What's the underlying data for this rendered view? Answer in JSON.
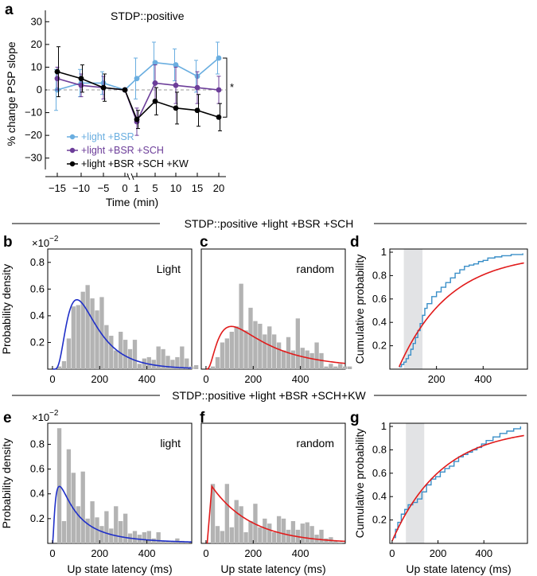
{
  "colors": {
    "light_bsr": "#6aaee0",
    "light_bsr_sch": "#6c3d99",
    "light_bsr_sch_kw": "#000000",
    "fit_blue": "#1f2fc8",
    "fit_red": "#e11b1b",
    "ecdf_blue": "#3a8fc8",
    "bar_gray": "#b3b3b3",
    "shade_gray": "#e2e3e5"
  },
  "sections": {
    "top_title": "STDP::positive +light +BSR +SCH",
    "bottom_title": "STDP::positive +light +BSR +SCH+KW"
  },
  "panel_a": {
    "letter": "a",
    "title": "STDP::positive",
    "ylabel": "% change PSP slope",
    "xlabel": "Time (min)",
    "significance": "*",
    "legend": [
      "+light +BSR",
      "+light +BSR +SCH",
      "+light +BSR +SCH +KW"
    ]
  },
  "chart_data": [
    {
      "id": "a",
      "type": "line",
      "title": "STDP::positive",
      "xlabel": "Time (min)",
      "ylabel": "% change PSP slope",
      "x_pre": [
        -15,
        -10,
        -5,
        0
      ],
      "x_post": [
        1,
        5,
        10,
        15,
        20
      ],
      "xticks": [
        -15,
        -10,
        -5,
        0,
        1,
        5,
        10,
        15,
        20
      ],
      "yticks": [
        -30,
        -20,
        -10,
        0,
        10,
        20,
        30
      ],
      "ylim": [
        -35,
        35
      ],
      "series": [
        {
          "name": "+light +BSR",
          "color_key": "light_bsr",
          "x": [
            -15,
            -10,
            -5,
            0,
            1,
            5,
            10,
            15,
            20
          ],
          "y": [
            0,
            3,
            3,
            0,
            5,
            12,
            11,
            6,
            14
          ],
          "err": [
            9,
            6,
            5,
            0,
            9,
            9,
            7,
            7,
            7
          ]
        },
        {
          "name": "+light +BSR +SCH",
          "color_key": "light_bsr_sch",
          "x": [
            -15,
            -10,
            -5,
            0,
            1,
            5,
            10,
            15,
            20
          ],
          "y": [
            5,
            2,
            1,
            0,
            -14,
            3,
            2,
            1,
            0
          ],
          "err": [
            5,
            5,
            5,
            0,
            6,
            8,
            8,
            7,
            6
          ]
        },
        {
          "name": "+light +BSR +SCH +KW",
          "color_key": "light_bsr_sch_kw",
          "x": [
            -15,
            -10,
            -5,
            0,
            1,
            5,
            10,
            15,
            20
          ],
          "y": [
            8,
            5,
            1,
            0,
            -13,
            -5,
            -8,
            -9,
            -12
          ],
          "err": [
            11,
            6,
            6,
            0,
            4,
            6,
            7,
            7,
            6
          ]
        }
      ]
    },
    {
      "id": "b",
      "type": "bar",
      "label": "Light",
      "ylabel": "Probability density",
      "scale_label": "×10",
      "scale_exp": "−2",
      "bin_edges_start": 0,
      "bin_width": 20,
      "values": [
        0,
        0.02,
        0.06,
        0.23,
        0.47,
        0.48,
        0.58,
        0.63,
        0.53,
        0.44,
        0.54,
        0.33,
        0.25,
        0.14,
        0.28,
        0.22,
        0.15,
        0.22,
        0.04,
        0.08,
        0.09,
        0.07,
        0.17,
        0.15,
        0.1,
        0.07,
        0.09,
        0.17,
        0.08,
        0.02,
        0.03
      ],
      "fit": {
        "color_key": "fit_blue",
        "model": "lognormal",
        "mu": 5.0,
        "sigma": 0.6,
        "peak": 0.52
      },
      "xticks": [
        0,
        200,
        400
      ],
      "yticks": [
        0.2,
        0.4,
        0.6,
        0.8
      ],
      "xlim": [
        -20,
        590
      ],
      "ylim": [
        0,
        0.9
      ]
    },
    {
      "id": "c",
      "type": "bar",
      "label": "random",
      "bin_edges_start": 0,
      "bin_width": 20,
      "values": [
        0,
        0.02,
        0.09,
        0.2,
        0.23,
        0.28,
        0.32,
        0.64,
        0.29,
        0.46,
        0.36,
        0.34,
        0.26,
        0.32,
        0.26,
        0.2,
        0.14,
        0.24,
        0.14,
        0.38,
        0.16,
        0.14,
        0.12,
        0.2,
        0.12,
        0.02,
        0.04,
        0.02,
        0.04,
        0.02,
        0.02
      ],
      "fit": {
        "color_key": "fit_red",
        "model": "lognormal",
        "mu": 5.4,
        "sigma": 0.85,
        "peak": 0.32
      },
      "xticks": [
        0,
        200,
        400
      ],
      "xlim": [
        -20,
        590
      ],
      "ylim": [
        0,
        0.9
      ]
    },
    {
      "id": "d",
      "type": "line",
      "ylabel": "Cumulative probability",
      "xticks": [
        200,
        400
      ],
      "yticks": [
        0.2,
        0.4,
        0.6,
        0.8,
        1
      ],
      "xlim": [
        0,
        590
      ],
      "ylim": [
        0,
        1
      ],
      "shaded_x": [
        60,
        140
      ],
      "ecdf": {
        "color_key": "ecdf_blue",
        "x": [
          40,
          50,
          60,
          70,
          80,
          90,
          100,
          110,
          120,
          130,
          140,
          150,
          160,
          180,
          200,
          220,
          240,
          260,
          280,
          300,
          320,
          340,
          360,
          380,
          400,
          420,
          450,
          480,
          520,
          570
        ],
        "y": [
          0.02,
          0.04,
          0.06,
          0.09,
          0.12,
          0.17,
          0.22,
          0.27,
          0.33,
          0.39,
          0.46,
          0.52,
          0.56,
          0.62,
          0.66,
          0.7,
          0.74,
          0.78,
          0.82,
          0.85,
          0.88,
          0.89,
          0.9,
          0.92,
          0.93,
          0.95,
          0.96,
          0.97,
          0.98,
          0.99
        ]
      },
      "fit": {
        "color_key": "fit_red",
        "model": "cdf",
        "x0": 40,
        "x_half": 190
      }
    },
    {
      "id": "e",
      "type": "bar",
      "label": "light",
      "ylabel": "Probability density",
      "xlabel": "Up state latency (ms)",
      "scale_label": "×10",
      "scale_exp": "−2",
      "bin_edges_start": 0,
      "bin_width": 20,
      "values": [
        0,
        0.93,
        0.18,
        0.76,
        0.57,
        0.3,
        0.58,
        0.2,
        0.34,
        0.21,
        0.14,
        0.26,
        0.12,
        0.3,
        0.18,
        0.24,
        0.08,
        0.1,
        0.07,
        0.09,
        0.1,
        0.04,
        0.09,
        0.02,
        0.02,
        0.02,
        0.04,
        0.02,
        0.01
      ],
      "fit": {
        "color_key": "fit_blue",
        "model": "lognormal",
        "mu": 4.6,
        "sigma": 1.1,
        "peak": 0.46
      },
      "xticks": [
        0,
        200,
        400
      ],
      "yticks": [
        0.2,
        0.4,
        0.6,
        0.8
      ],
      "xlim": [
        -20,
        590
      ],
      "ylim": [
        0,
        0.97
      ]
    },
    {
      "id": "f",
      "type": "bar",
      "label": "random",
      "xlabel": "Up state latency (ms)",
      "bin_edges_start": 0,
      "bin_width": 20,
      "values": [
        0,
        0.48,
        0.14,
        0.1,
        0.48,
        0.13,
        0.35,
        0.3,
        0.09,
        0.18,
        0.32,
        0.13,
        0.2,
        0.16,
        0.09,
        0.22,
        0.2,
        0.11,
        0.18,
        0.11,
        0.16,
        0.17,
        0.14,
        0.07,
        0.11,
        0.04,
        0.05,
        0.02,
        0.01
      ],
      "fit": {
        "color_key": "fit_red",
        "model": "exp",
        "x0": 5,
        "peak_x": 25,
        "peak": 0.46,
        "tau": 170
      },
      "xticks": [
        0,
        200,
        400
      ],
      "xlim": [
        -20,
        590
      ],
      "ylim": [
        0,
        0.97
      ]
    },
    {
      "id": "g",
      "type": "line",
      "ylabel": "Cumulative probability",
      "xlabel": "Up state latency (ms)",
      "xticks": [
        0,
        200,
        400
      ],
      "yticks": [
        0.2,
        0.4,
        0.6,
        0.8,
        1
      ],
      "xlim": [
        -10,
        590
      ],
      "ylim": [
        0,
        1
      ],
      "shaded_x": [
        60,
        140
      ],
      "ecdf": {
        "color_key": "ecdf_blue",
        "x": [
          5,
          15,
          25,
          40,
          55,
          70,
          90,
          110,
          130,
          150,
          170,
          190,
          210,
          230,
          250,
          270,
          290,
          310,
          330,
          350,
          370,
          390,
          410,
          440,
          470,
          500,
          530,
          560
        ],
        "y": [
          0.05,
          0.12,
          0.18,
          0.25,
          0.29,
          0.33,
          0.35,
          0.38,
          0.44,
          0.5,
          0.55,
          0.57,
          0.61,
          0.64,
          0.66,
          0.7,
          0.74,
          0.76,
          0.78,
          0.8,
          0.82,
          0.85,
          0.88,
          0.91,
          0.94,
          0.96,
          0.98,
          1.0
        ]
      },
      "fit": {
        "color_key": "fit_red",
        "model": "cdf",
        "x0": 0,
        "x_half": 150
      }
    }
  ]
}
